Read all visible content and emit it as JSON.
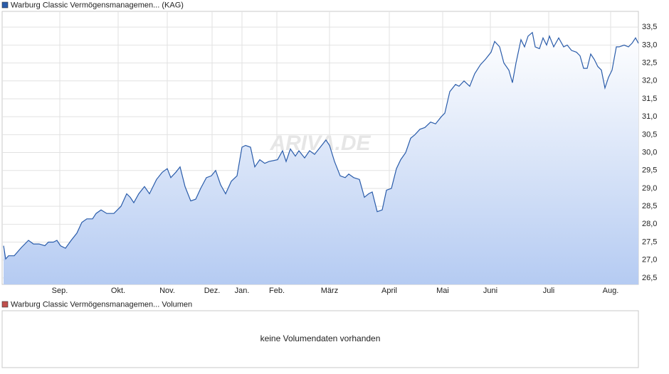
{
  "chart_data": [
    {
      "type": "area",
      "watermark": "ARIVA.DE",
      "series": [
        {
          "name": "Warburg Classic Vermögensmanagemen... (KAG)",
          "color": "#2a5caa",
          "x": [
            2,
            5,
            9,
            17,
            27,
            37,
            44,
            52,
            60,
            65,
            72,
            77,
            82,
            89,
            97,
            105,
            112,
            119,
            127,
            132,
            139,
            147,
            157,
            167,
            175,
            180,
            185,
            192,
            200,
            207,
            217,
            225,
            232,
            237,
            244,
            250,
            257,
            265,
            272,
            279,
            287,
            294,
            300,
            307,
            314,
            322,
            330,
            337,
            342,
            349,
            355,
            362,
            369,
            375,
            387,
            394,
            399,
            405,
            412,
            417,
            425,
            432,
            439,
            447,
            455,
            460,
            467,
            475,
            482,
            487,
            494,
            502,
            509,
            515,
            520,
            527,
            534,
            540,
            547,
            554,
            560,
            567,
            574,
            580,
            587,
            594,
            602,
            609,
            617,
            622,
            629,
            637,
            642,
            649,
            657,
            664,
            672,
            679,
            687,
            692,
            699,
            705,
            712,
            717,
            722,
            729,
            734,
            739,
            745,
            749,
            755,
            760,
            765,
            769,
            775,
            782,
            789,
            794,
            800,
            807,
            812,
            817,
            822,
            827,
            832,
            837,
            842,
            847,
            852,
            857,
            863,
            867,
            874,
            880,
            885,
            890,
            894
          ],
          "values": [
            27.4,
            27.03,
            27.12,
            27.12,
            27.35,
            27.55,
            27.45,
            27.45,
            27.4,
            27.5,
            27.5,
            27.55,
            27.4,
            27.33,
            27.55,
            27.75,
            28.05,
            28.15,
            28.15,
            28.3,
            28.4,
            28.3,
            28.3,
            28.5,
            28.85,
            28.75,
            28.6,
            28.85,
            29.05,
            28.85,
            29.25,
            29.45,
            29.55,
            29.3,
            29.45,
            29.6,
            29.05,
            28.65,
            28.7,
            29.0,
            29.3,
            29.35,
            29.5,
            29.1,
            28.85,
            29.2,
            29.35,
            30.15,
            30.2,
            30.15,
            29.6,
            29.8,
            29.7,
            29.75,
            29.8,
            30.05,
            29.75,
            30.1,
            29.9,
            30.05,
            29.85,
            30.05,
            29.95,
            30.15,
            30.35,
            30.2,
            29.75,
            29.35,
            29.3,
            29.4,
            29.3,
            29.25,
            28.75,
            28.85,
            28.9,
            28.35,
            28.4,
            28.95,
            29.0,
            29.55,
            29.8,
            30.0,
            30.4,
            30.5,
            30.65,
            30.7,
            30.85,
            30.8,
            31.0,
            31.1,
            31.7,
            31.9,
            31.85,
            32.0,
            31.85,
            32.2,
            32.45,
            32.6,
            32.8,
            33.1,
            32.95,
            32.5,
            32.3,
            31.95,
            32.5,
            33.15,
            32.95,
            33.25,
            33.35,
            32.95,
            32.9,
            33.2,
            33.0,
            33.25,
            32.95,
            33.2,
            32.95,
            33.0,
            32.85,
            32.8,
            32.7,
            32.35,
            32.35,
            32.75,
            32.6,
            32.4,
            32.3,
            31.8,
            32.1,
            32.3,
            32.95,
            32.95,
            33.0,
            32.95,
            33.05,
            33.2,
            33.05
          ]
        }
      ],
      "xlim": [
        0,
        894
      ],
      "xticks": [
        {
          "value": 81,
          "label": "Sep."
        },
        {
          "value": 163,
          "label": "Okt."
        },
        {
          "value": 232,
          "label": "Nov."
        },
        {
          "value": 295,
          "label": "Dez."
        },
        {
          "value": 337,
          "label": "Jan."
        },
        {
          "value": 386,
          "label": "Feb."
        },
        {
          "value": 460,
          "label": "März"
        },
        {
          "value": 544,
          "label": "April"
        },
        {
          "value": 619,
          "label": "Mai"
        },
        {
          "value": 686,
          "label": "Juni"
        },
        {
          "value": 768,
          "label": "Juli"
        },
        {
          "value": 855,
          "label": "Aug."
        }
      ],
      "ylim": [
        26.32,
        33.94
      ],
      "yticks": [
        {
          "value": 26.5,
          "label": "26,5"
        },
        {
          "value": 27,
          "label": "27,0"
        },
        {
          "value": 27.5,
          "label": "27,5"
        },
        {
          "value": 28,
          "label": "28,0"
        },
        {
          "value": 28.5,
          "label": "28,5"
        },
        {
          "value": 29,
          "label": "29,0"
        },
        {
          "value": 29.5,
          "label": "29,5"
        },
        {
          "value": 30,
          "label": "30,0"
        },
        {
          "value": 30.5,
          "label": "30,5"
        },
        {
          "value": 31,
          "label": "31,0"
        },
        {
          "value": 31.5,
          "label": "31,5"
        },
        {
          "value": 32,
          "label": "32,0"
        },
        {
          "value": 32.5,
          "label": "32,5"
        },
        {
          "value": 33,
          "label": "33,0"
        },
        {
          "value": 33.5,
          "label": "33,5"
        }
      ],
      "grid": true
    },
    {
      "type": "empty",
      "series": [
        {
          "name": "Warburg Classic Vermögensmanagemen... Volumen",
          "color": "#c0504d"
        }
      ],
      "message": "keine Volumendaten vorhanden"
    }
  ]
}
